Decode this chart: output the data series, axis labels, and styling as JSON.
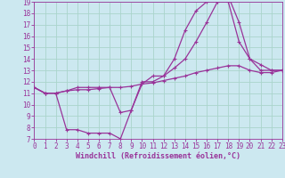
{
  "xlabel": "Windchill (Refroidissement éolien,°C)",
  "bg_color": "#cce8f0",
  "line_color": "#993399",
  "grid_color": "#aad4cc",
  "xlim": [
    0,
    23
  ],
  "ylim": [
    7,
    19
  ],
  "xticks": [
    0,
    1,
    2,
    3,
    4,
    5,
    6,
    7,
    8,
    9,
    10,
    11,
    12,
    13,
    14,
    15,
    16,
    17,
    18,
    19,
    20,
    21,
    22,
    23
  ],
  "yticks": [
    7,
    8,
    9,
    10,
    11,
    12,
    13,
    14,
    15,
    16,
    17,
    18,
    19
  ],
  "line1_x": [
    0,
    1,
    2,
    3,
    4,
    5,
    6,
    7,
    8,
    9,
    10,
    11,
    12,
    13,
    14,
    15,
    16,
    17,
    18,
    19,
    20,
    21,
    22,
    23
  ],
  "line1_y": [
    11.5,
    11.0,
    11.0,
    11.2,
    11.3,
    11.3,
    11.4,
    11.5,
    11.5,
    11.6,
    11.8,
    11.9,
    12.1,
    12.3,
    12.5,
    12.8,
    13.0,
    13.2,
    13.4,
    13.4,
    13.0,
    12.8,
    12.8,
    13.0
  ],
  "line2_x": [
    0,
    1,
    2,
    3,
    4,
    5,
    6,
    7,
    8,
    9,
    10,
    11,
    12,
    13,
    14,
    15,
    16,
    17,
    18,
    19,
    20,
    21,
    22,
    23
  ],
  "line2_y": [
    11.5,
    11.0,
    11.0,
    11.2,
    11.5,
    11.5,
    11.5,
    11.5,
    9.3,
    9.5,
    11.8,
    12.5,
    12.5,
    14.0,
    16.5,
    18.2,
    19.0,
    19.0,
    19.0,
    15.5,
    14.0,
    13.0,
    13.0,
    13.0
  ],
  "line3_x": [
    0,
    1,
    2,
    3,
    4,
    5,
    6,
    7,
    8,
    9,
    10,
    11,
    12,
    13,
    14,
    15,
    16,
    17,
    18,
    19,
    20,
    21,
    22,
    23
  ],
  "line3_y": [
    11.5,
    11.0,
    11.0,
    7.8,
    7.8,
    7.5,
    7.5,
    7.5,
    7.0,
    9.5,
    12.0,
    12.0,
    12.5,
    13.2,
    14.0,
    15.5,
    17.2,
    19.0,
    19.5,
    17.2,
    14.0,
    13.5,
    13.0,
    13.0
  ]
}
